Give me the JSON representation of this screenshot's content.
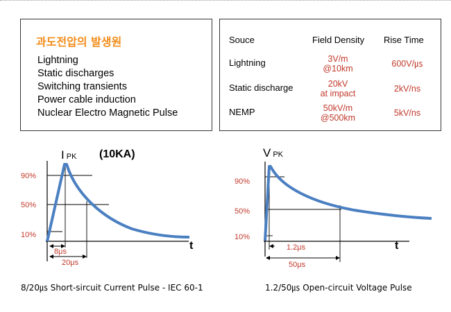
{
  "sources_box": {
    "title": "과도전압의 발생원",
    "items": [
      "Lightning",
      "Static discharges",
      "Switching transients",
      "Power cable induction",
      "Nuclear Electro Magnetic Pulse"
    ]
  },
  "table": {
    "headers": [
      "Souce",
      "Field Density",
      "Rise Time"
    ],
    "rows": [
      {
        "source": "Lightning",
        "density": [
          "3V/m",
          "@10km"
        ],
        "rise": "600V/㎲"
      },
      {
        "source": "Static discharge",
        "density": [
          "20kV",
          "at impact"
        ],
        "rise": "2kV/ns"
      },
      {
        "source": "NEMP",
        "density": [
          "50kV/m",
          "@500km"
        ],
        "rise": "5kV/ns"
      }
    ]
  },
  "current_pulse": {
    "peak_main": "I",
    "peak_sub": "PK",
    "peak_value": "(10KA)",
    "levels": [
      "90%",
      "50%",
      "10%"
    ],
    "axis_label": "t",
    "rise_label": "8μs",
    "decay_label": "20μs",
    "caption": "8/20㎲  Short-sircuit Current Pulse - IEC 60-1"
  },
  "voltage_pulse": {
    "peak_main": "V",
    "peak_sub": "PK",
    "levels": [
      "90%",
      "50%",
      "10%"
    ],
    "axis_label": "t",
    "rise_label": "1.2μs",
    "decay_label": "50μs",
    "caption": "1.2/50㎲  Open-circuit Voltage Pulse"
  },
  "colors": {
    "curve": "#4a7fc1",
    "accent_title": "#f28c18",
    "value_red": "#c0392b",
    "level_label": "#c0392b"
  }
}
